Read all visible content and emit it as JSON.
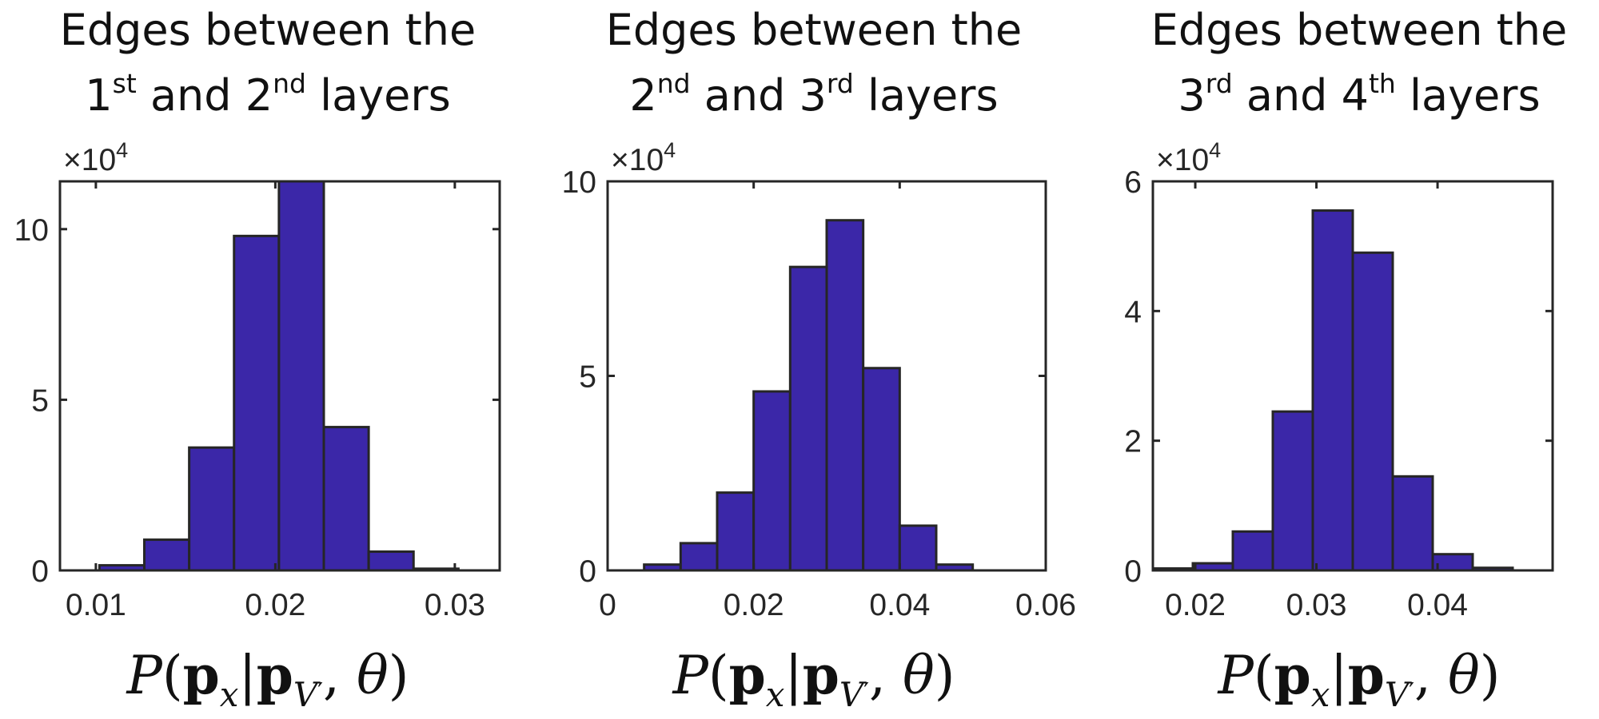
{
  "chart_data": [
    {
      "type": "bar",
      "title_lines": [
        {
          "text": "Edges between the"
        },
        {
          "parts": [
            {
              "t": "1",
              "sup": false
            },
            {
              "t": "st",
              "sup": true
            },
            {
              "t": " and 2",
              "sup": false
            },
            {
              "t": "nd",
              "sup": true
            },
            {
              "t": " layers",
              "sup": false
            }
          ]
        }
      ],
      "multiplier": {
        "base": "×10",
        "exp": "4"
      },
      "xlabel_parts": [
        "P(",
        "p",
        "x",
        "|",
        "p",
        "V",
        "′",
        ", θ)"
      ],
      "xlim": [
        0.008,
        0.0325
      ],
      "ylim": [
        0,
        11.4
      ],
      "xticks": [
        0.01,
        0.02,
        0.03
      ],
      "xtick_labels": [
        "0.01",
        "0.02",
        "0.03"
      ],
      "yticks": [
        0,
        5,
        10
      ],
      "ytick_labels": [
        "0",
        "5",
        "10"
      ],
      "bin_edges": [
        0.0102,
        0.0127,
        0.0152,
        0.0177,
        0.0202,
        0.0227,
        0.0252,
        0.0277,
        0.0302
      ],
      "values": [
        0.15,
        0.9,
        3.6,
        9.8,
        11.4,
        4.2,
        0.55,
        0.05
      ],
      "bar_color": "#3b27a8",
      "edge_color": "#262626"
    },
    {
      "type": "bar",
      "title_lines": [
        {
          "text": "Edges between the"
        },
        {
          "parts": [
            {
              "t": "2",
              "sup": false
            },
            {
              "t": "nd",
              "sup": true
            },
            {
              "t": " and 3",
              "sup": false
            },
            {
              "t": "rd",
              "sup": true
            },
            {
              "t": " layers",
              "sup": false
            }
          ]
        }
      ],
      "multiplier": {
        "base": "×10",
        "exp": "4"
      },
      "xlabel_parts": [
        "P(",
        "p",
        "x",
        "|",
        "p",
        "V",
        "′",
        ", θ)"
      ],
      "xlim": [
        0,
        0.06
      ],
      "ylim": [
        0,
        10
      ],
      "xticks": [
        0,
        0.02,
        0.04,
        0.06
      ],
      "xtick_labels": [
        "0",
        "0.02",
        "0.04",
        "0.06"
      ],
      "yticks": [
        0,
        5,
        10
      ],
      "ytick_labels": [
        "0",
        "5",
        "10"
      ],
      "bin_edges": [
        0.005,
        0.01,
        0.015,
        0.02,
        0.025,
        0.03,
        0.035,
        0.04,
        0.045,
        0.05
      ],
      "values": [
        0.15,
        0.7,
        2.0,
        4.6,
        7.8,
        9.0,
        5.2,
        1.15,
        0.15
      ],
      "bar_color": "#3b27a8",
      "edge_color": "#262626"
    },
    {
      "type": "bar",
      "title_lines": [
        {
          "text": "Edges between the"
        },
        {
          "parts": [
            {
              "t": "3",
              "sup": false
            },
            {
              "t": "rd",
              "sup": true
            },
            {
              "t": " and 4",
              "sup": false
            },
            {
              "t": "th",
              "sup": true
            },
            {
              "t": " layers",
              "sup": false
            }
          ]
        }
      ],
      "multiplier": {
        "base": "×10",
        "exp": "4"
      },
      "xlabel_parts": [
        "P(",
        "p",
        "x",
        "|",
        "p",
        "V",
        "′",
        ", θ)"
      ],
      "xlim": [
        0.0165,
        0.0495
      ],
      "ylim": [
        0,
        6
      ],
      "xticks": [
        0.02,
        0.03,
        0.04
      ],
      "xtick_labels": [
        "0.02",
        "0.03",
        "0.04"
      ],
      "yticks": [
        0,
        2,
        4,
        6
      ],
      "ytick_labels": [
        "0",
        "2",
        "4",
        "6"
      ],
      "bin_edges": [
        0.0165,
        0.0198,
        0.0231,
        0.0264,
        0.0297,
        0.033,
        0.0363,
        0.0396,
        0.0429,
        0.0462
      ],
      "values": [
        0.03,
        0.11,
        0.6,
        2.45,
        5.55,
        4.9,
        1.45,
        0.25,
        0.04
      ],
      "bar_color": "#3b27a8",
      "edge_color": "#262626"
    }
  ]
}
